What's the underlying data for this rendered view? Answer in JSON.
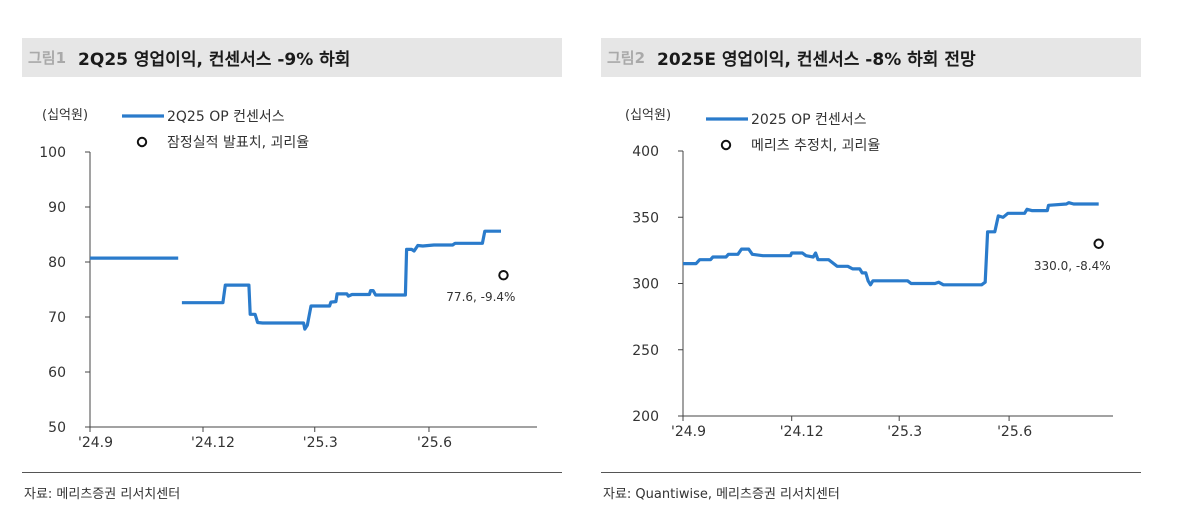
{
  "charts": [
    {
      "fig_label": "그림1",
      "title": "2Q25 영업이익, 컨센서스 -9% 하회",
      "source": "자료: 메리츠증권 리서치센터"
    },
    {
      "fig_label": "그림2",
      "title": "2025E 영업이익, 컨센서스 -8% 하회 전망",
      "source": "자료: Quantiwise, 메리츠증권 리서치센터"
    }
  ],
  "colors": {
    "series": "#2a7bcb",
    "axis": "#333333",
    "title_bg": "#e6e6e6"
  },
  "chart_data": [
    {
      "type": "line",
      "title": "2Q25 영업이익, 컨센서스 -9% 하회",
      "ylabel": "(십억원)",
      "xlabel": "",
      "ylim": [
        50,
        100
      ],
      "yticks": [
        50,
        60,
        70,
        80,
        90,
        100
      ],
      "xticks": [
        "'24.9",
        "'24.12",
        "'25.3",
        "'25.6"
      ],
      "x_tick_dates": [
        "2024-09-01",
        "2024-12-01",
        "2025-03-01",
        "2025-06-01"
      ],
      "xlim": [
        "2024-09-01",
        "2025-08-27"
      ],
      "grid": false,
      "legend": "top-left",
      "series": [
        {
          "name": "2Q25 OP 컨센서스",
          "style": "line",
          "segments": [
            [
              [
                "2024-09-01",
                80.7
              ],
              [
                "2024-11-11",
                80.7
              ]
            ],
            [
              [
                "2024-11-14",
                72.6
              ],
              [
                "2024-12-17",
                72.6
              ],
              [
                "2024-12-19",
                75.8
              ],
              [
                "2025-01-07",
                75.8
              ],
              [
                "2025-01-08",
                70.5
              ],
              [
                "2025-01-12",
                70.5
              ],
              [
                "2025-01-14",
                69.0
              ],
              [
                "2025-01-18",
                68.9
              ],
              [
                "2025-02-20",
                68.9
              ],
              [
                "2025-02-21",
                67.8
              ],
              [
                "2025-02-23",
                68.5
              ],
              [
                "2025-02-26",
                72.0
              ],
              [
                "2025-03-13",
                72.0
              ],
              [
                "2025-03-14",
                72.7
              ],
              [
                "2025-03-18",
                72.8
              ],
              [
                "2025-03-19",
                74.2
              ],
              [
                "2025-03-27",
                74.2
              ],
              [
                "2025-03-28",
                73.8
              ],
              [
                "2025-03-31",
                74.1
              ],
              [
                "2025-04-14",
                74.1
              ],
              [
                "2025-04-15",
                74.8
              ],
              [
                "2025-04-17",
                74.8
              ],
              [
                "2025-04-19",
                74.0
              ],
              [
                "2025-05-13",
                74.0
              ],
              [
                "2025-05-14",
                82.3
              ],
              [
                "2025-05-18",
                82.3
              ],
              [
                "2025-05-20",
                82.0
              ],
              [
                "2025-05-23",
                83.0
              ],
              [
                "2025-05-27",
                82.9
              ],
              [
                "2025-06-05",
                83.1
              ],
              [
                "2025-06-20",
                83.1
              ],
              [
                "2025-06-22",
                83.4
              ],
              [
                "2025-07-14",
                83.4
              ],
              [
                "2025-07-16",
                85.6
              ],
              [
                "2025-07-29",
                85.6
              ]
            ]
          ]
        },
        {
          "name": "잠정실적 발표치, 괴리율",
          "style": "marker",
          "points": [
            {
              "x": "2025-07-31",
              "y": 77.6,
              "label": "77.6, -9.4%"
            }
          ]
        }
      ]
    },
    {
      "type": "line",
      "title": "2025E 영업이익, 컨센서스 -8% 하회 전망",
      "ylabel": "(십억원)",
      "xlabel": "",
      "ylim": [
        200,
        400
      ],
      "yticks": [
        200,
        250,
        300,
        350,
        400
      ],
      "xticks": [
        "'24.9",
        "'24.12",
        "'25.3",
        "'25.6"
      ],
      "x_tick_dates": [
        "2024-09-01",
        "2024-12-01",
        "2025-03-01",
        "2025-06-01"
      ],
      "xlim": [
        "2024-09-01",
        "2025-08-27"
      ],
      "grid": false,
      "legend": "top-left",
      "series": [
        {
          "name": "2025 OP 컨센서스",
          "style": "line",
          "segments": [
            [
              [
                "2024-09-01",
                315
              ],
              [
                "2024-09-12",
                315
              ],
              [
                "2024-09-15",
                318
              ],
              [
                "2024-09-24",
                318
              ],
              [
                "2024-09-26",
                320
              ],
              [
                "2024-10-07",
                320
              ],
              [
                "2024-10-09",
                322
              ],
              [
                "2024-10-17",
                322
              ],
              [
                "2024-10-20",
                326
              ],
              [
                "2024-10-26",
                326
              ],
              [
                "2024-10-29",
                322
              ],
              [
                "2024-11-07",
                321
              ],
              [
                "2024-11-30",
                321
              ],
              [
                "2024-12-01",
                323
              ],
              [
                "2024-12-10",
                323
              ],
              [
                "2024-12-13",
                321
              ],
              [
                "2024-12-19",
                320
              ],
              [
                "2024-12-21",
                323
              ],
              [
                "2024-12-23",
                318
              ],
              [
                "2025-01-01",
                318
              ],
              [
                "2025-01-08",
                313
              ],
              [
                "2025-01-17",
                313
              ],
              [
                "2025-01-21",
                311
              ],
              [
                "2025-01-27",
                311
              ],
              [
                "2025-01-29",
                308
              ],
              [
                "2025-02-01",
                308
              ],
              [
                "2025-02-03",
                302
              ],
              [
                "2025-02-05",
                299
              ],
              [
                "2025-02-07",
                302
              ],
              [
                "2025-03-08",
                302
              ],
              [
                "2025-03-11",
                300
              ],
              [
                "2025-03-31",
                300
              ],
              [
                "2025-04-03",
                301
              ],
              [
                "2025-04-07",
                299
              ],
              [
                "2025-05-09",
                299
              ],
              [
                "2025-05-12",
                301
              ],
              [
                "2025-05-14",
                339
              ],
              [
                "2025-05-20",
                339
              ],
              [
                "2025-05-23",
                351
              ],
              [
                "2025-05-27",
                350
              ],
              [
                "2025-05-31",
                353
              ],
              [
                "2025-06-14",
                353
              ],
              [
                "2025-06-16",
                356
              ],
              [
                "2025-06-20",
                355
              ],
              [
                "2025-07-03",
                355
              ],
              [
                "2025-07-04",
                359
              ],
              [
                "2025-07-19",
                360
              ],
              [
                "2025-07-21",
                361
              ],
              [
                "2025-07-25",
                360
              ],
              [
                "2025-08-15",
                360
              ]
            ]
          ]
        },
        {
          "name": "메리츠 추정치, 괴리율",
          "style": "marker",
          "points": [
            {
              "x": "2025-08-15",
              "y": 330.0,
              "label": "330.0, -8.4%"
            }
          ]
        }
      ]
    }
  ]
}
